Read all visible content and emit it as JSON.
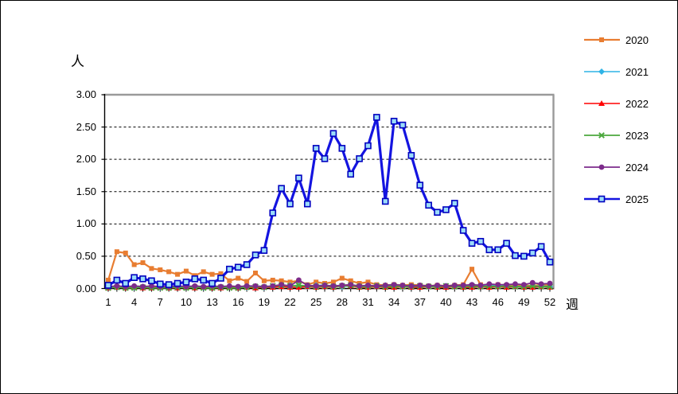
{
  "chart_data": {
    "type": "line",
    "title": "",
    "ylabel": "人",
    "xlabel": "週",
    "ylim": [
      0,
      3.0
    ],
    "y_ticks": [
      "3.00",
      "2.50",
      "2.00",
      "1.50",
      "1.00",
      "0.50",
      "0.00"
    ],
    "x_tick_weeks": [
      1,
      4,
      7,
      10,
      13,
      16,
      19,
      22,
      25,
      28,
      31,
      34,
      37,
      40,
      43,
      46,
      49,
      52
    ],
    "weeks_total": 52,
    "grid": "horizontal-dashed",
    "legend_position": "right",
    "series": [
      {
        "name": "2020",
        "color": "#E87D31",
        "marker": "square",
        "values": [
          0.13,
          0.57,
          0.55,
          0.37,
          0.4,
          0.31,
          0.29,
          0.26,
          0.22,
          0.27,
          0.2,
          0.26,
          0.22,
          0.23,
          0.12,
          0.16,
          0.11,
          0.24,
          0.12,
          0.13,
          0.12,
          0.1,
          0.12,
          0.06,
          0.1,
          0.08,
          0.1,
          0.16,
          0.12,
          0.08,
          0.1,
          0.06,
          0.05,
          0.06,
          0.05,
          0.06,
          0.05,
          0.04,
          0.05,
          0.04,
          0.05,
          0.06,
          0.3,
          0.06,
          0.05,
          0.06,
          0.05,
          0.04,
          0.05,
          0.04,
          0.06,
          0.05
        ]
      },
      {
        "name": "2021",
        "color": "#2EB3E6",
        "marker": "diamond",
        "values": [
          0.02,
          0.03,
          0.02,
          0.02,
          0.03,
          0.02,
          0.02,
          0.02,
          0.02,
          0.04,
          0.03,
          0.02,
          0.03,
          0.02,
          0.03,
          0.02,
          0.02,
          0.03,
          0.02,
          0.03,
          0.04,
          0.05,
          0.04,
          0.03,
          0.05,
          0.05,
          0.03,
          0.03,
          0.04,
          0.04,
          0.03,
          0.04,
          0.05,
          0.05,
          0.03,
          0.03,
          0.04,
          0.03,
          0.03,
          0.04,
          0.03,
          0.04,
          0.05,
          0.04,
          0.05,
          0.04,
          0.04,
          0.03,
          0.03,
          0.04,
          0.04,
          0.03
        ]
      },
      {
        "name": "2022",
        "color": "#FF0000",
        "marker": "triangle",
        "values": [
          0.01,
          0.02,
          0.01,
          0.02,
          0.01,
          0.01,
          0.02,
          0.01,
          0.01,
          0.02,
          0.01,
          0.02,
          0.01,
          0.01,
          0.02,
          0.01,
          0.02,
          0.01,
          0.02,
          0.02,
          0.03,
          0.02,
          0.02,
          0.03,
          0.02,
          0.03,
          0.02,
          0.04,
          0.04,
          0.02,
          0.02,
          0.03,
          0.02,
          0.02,
          0.03,
          0.02,
          0.02,
          0.03,
          0.02,
          0.02,
          0.03,
          0.02,
          0.02,
          0.03,
          0.02,
          0.03,
          0.02,
          0.03,
          0.02,
          0.02,
          0.03,
          0.02
        ]
      },
      {
        "name": "2023",
        "color": "#4BA83D",
        "marker": "x",
        "values": [
          0.01,
          0.02,
          0.01,
          0.01,
          0.02,
          0.01,
          0.01,
          0.01,
          0.02,
          0.01,
          0.02,
          0.01,
          0.01,
          0.02,
          0.01,
          0.01,
          0.02,
          0.03,
          0.02,
          0.04,
          0.05,
          0.04,
          0.05,
          0.04,
          0.03,
          0.04,
          0.03,
          0.04,
          0.05,
          0.03,
          0.03,
          0.04,
          0.03,
          0.04,
          0.03,
          0.03,
          0.04,
          0.03,
          0.03,
          0.04,
          0.03,
          0.03,
          0.04,
          0.03,
          0.04,
          0.03,
          0.04,
          0.03,
          0.03,
          0.04,
          0.03,
          0.03
        ]
      },
      {
        "name": "2024",
        "color": "#7D2B8B",
        "marker": "circle",
        "values": [
          0.03,
          0.04,
          0.03,
          0.04,
          0.03,
          0.04,
          0.03,
          0.03,
          0.04,
          0.03,
          0.04,
          0.03,
          0.04,
          0.03,
          0.04,
          0.03,
          0.04,
          0.04,
          0.03,
          0.04,
          0.06,
          0.04,
          0.13,
          0.05,
          0.04,
          0.05,
          0.04,
          0.05,
          0.06,
          0.04,
          0.05,
          0.04,
          0.05,
          0.06,
          0.05,
          0.04,
          0.05,
          0.04,
          0.05,
          0.04,
          0.05,
          0.05,
          0.06,
          0.05,
          0.07,
          0.06,
          0.06,
          0.07,
          0.06,
          0.09,
          0.07,
          0.08
        ]
      },
      {
        "name": "2025",
        "color": "#1414E0",
        "marker": "open-square",
        "marker_fill": "#9BDCF9",
        "marker_stroke": "#0000C0",
        "values": [
          0.05,
          0.13,
          0.08,
          0.17,
          0.15,
          0.12,
          0.07,
          0.06,
          0.08,
          0.1,
          0.15,
          0.13,
          0.08,
          0.16,
          0.3,
          0.33,
          0.37,
          0.52,
          0.59,
          1.17,
          1.55,
          1.31,
          1.71,
          1.31,
          2.17,
          2.01,
          2.4,
          2.17,
          1.77,
          2.01,
          2.21,
          2.65,
          1.35,
          2.59,
          2.53,
          2.06,
          1.6,
          1.29,
          1.18,
          1.22,
          1.32,
          0.9,
          0.7,
          0.73,
          0.6,
          0.6,
          0.7,
          0.51,
          0.5,
          0.55,
          0.65,
          0.41
        ]
      }
    ]
  }
}
